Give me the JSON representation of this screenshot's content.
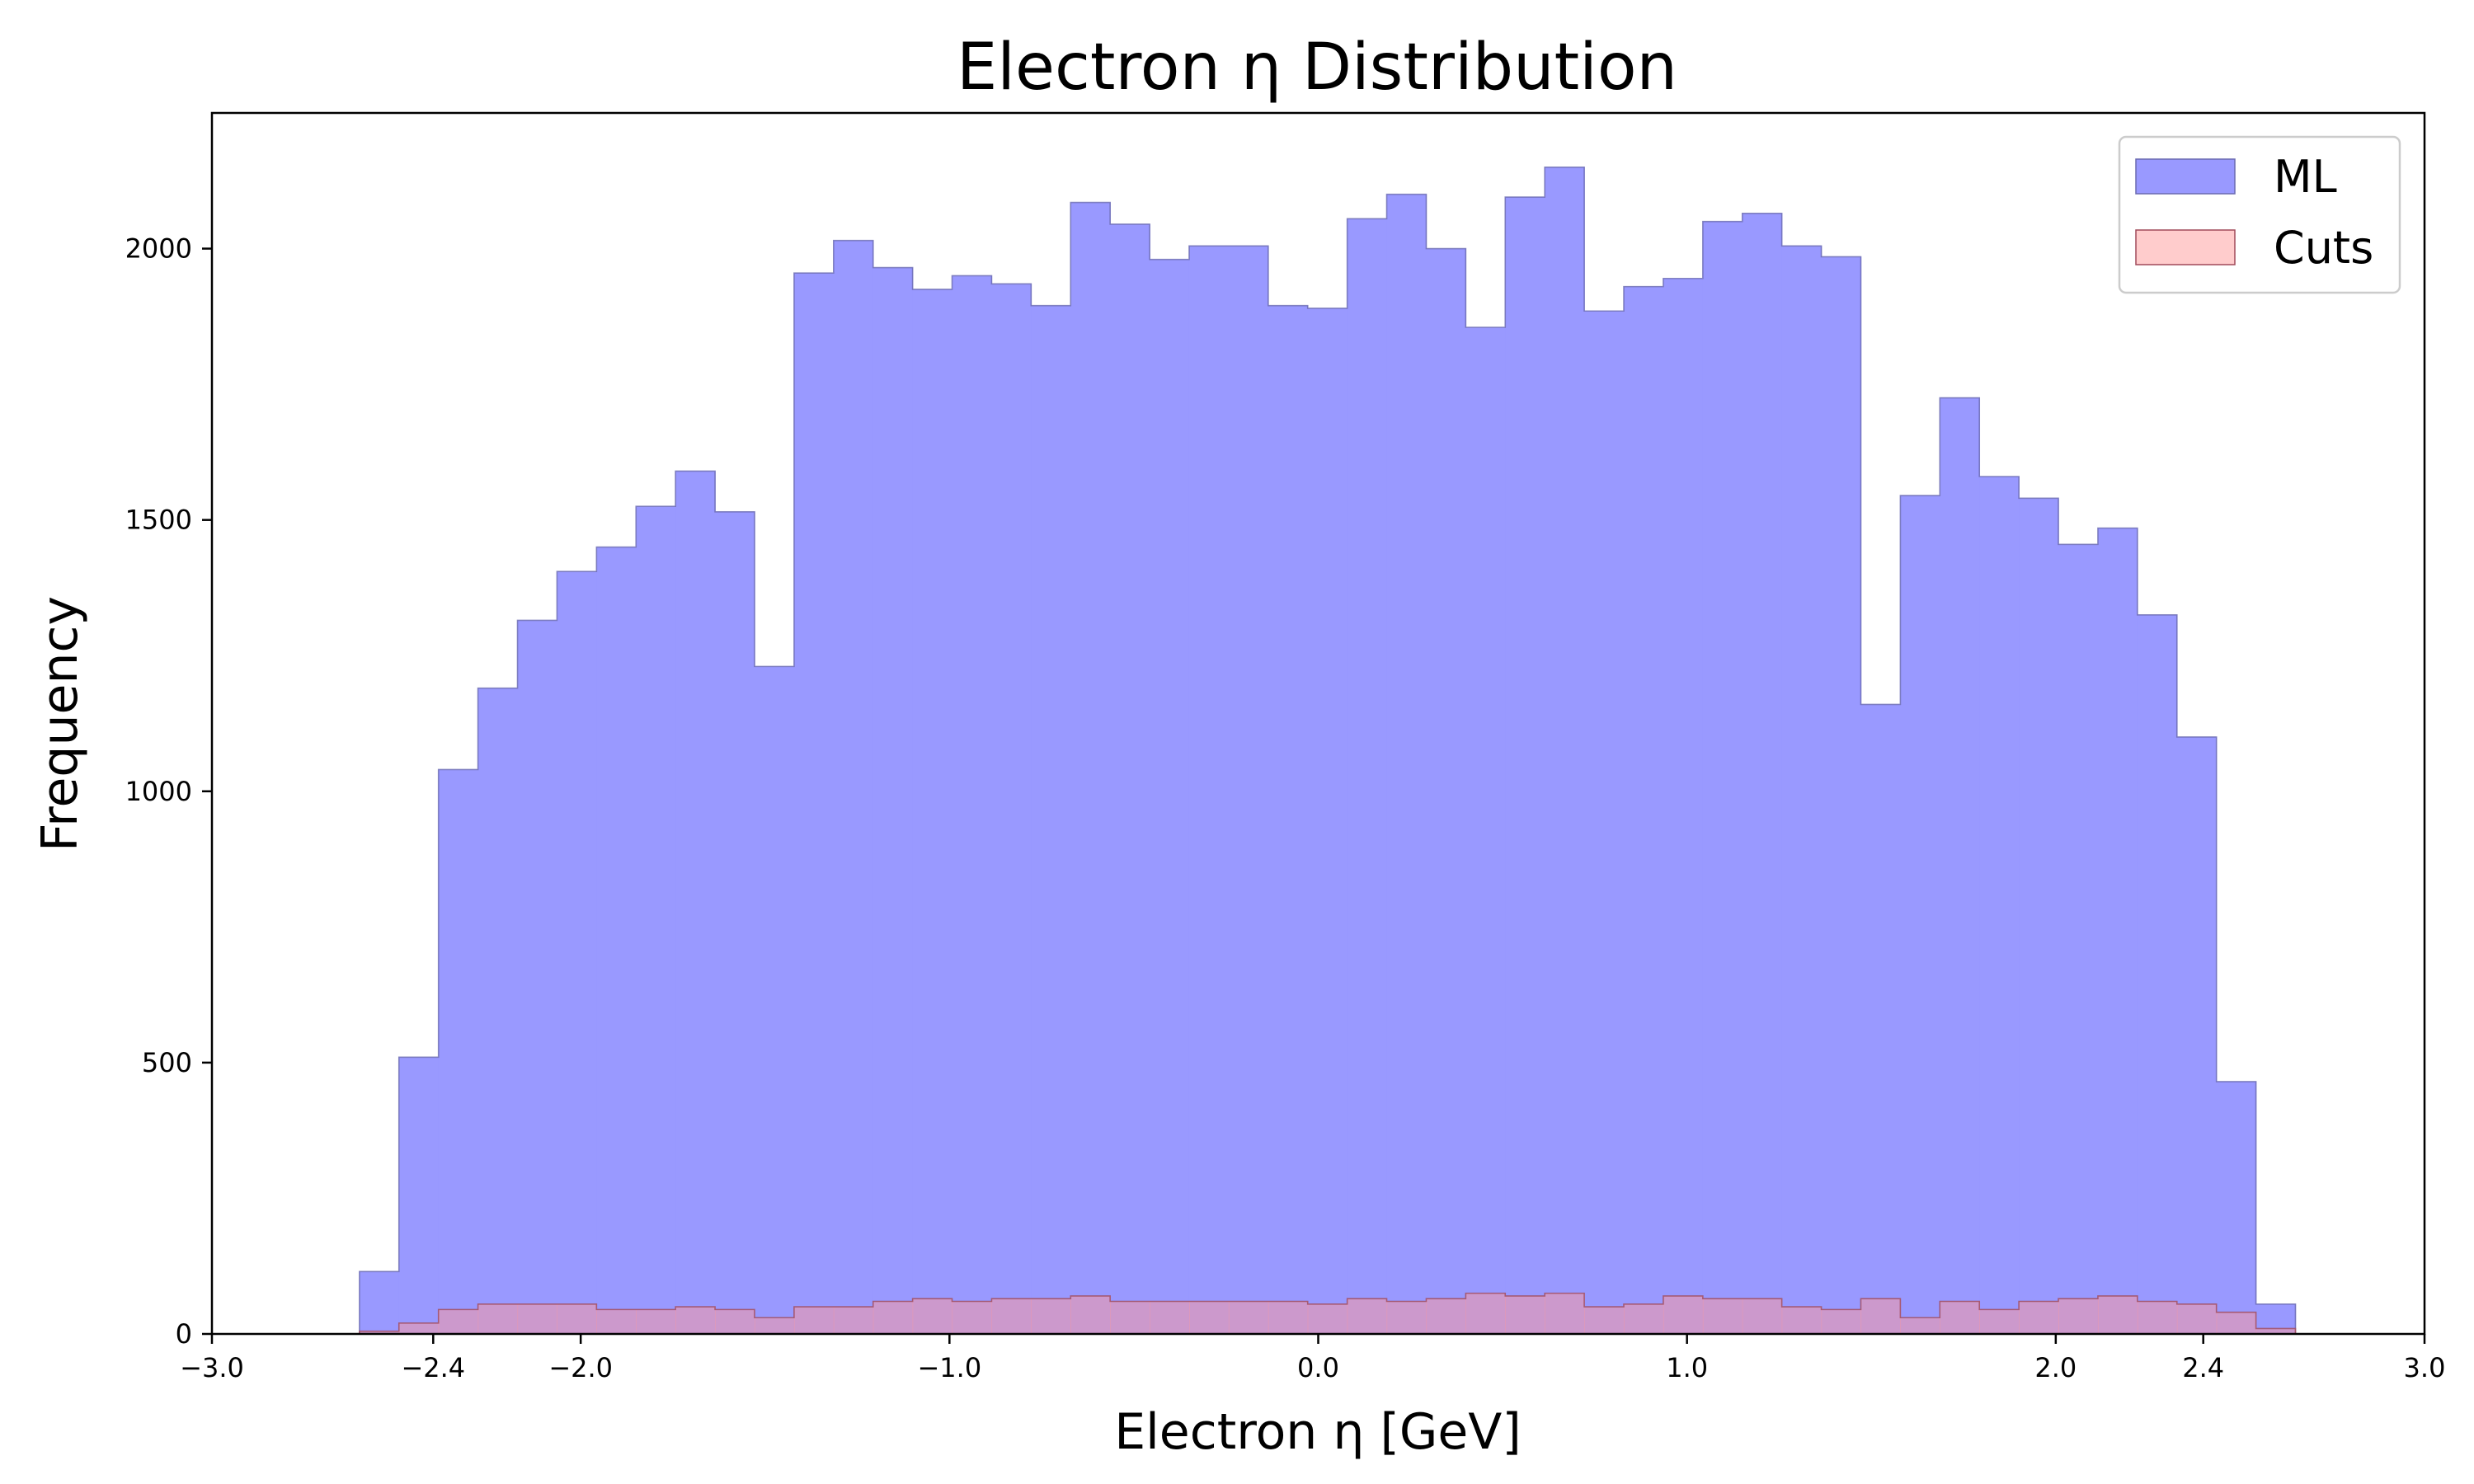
{
  "chart_data": {
    "type": "histogram",
    "title": "Electron η Distribution",
    "xlabel": "Electron η [GeV]",
    "ylabel": "Frequency",
    "xlim": [
      -3.0,
      3.0
    ],
    "ylim": [
      0,
      2250
    ],
    "x_ticks": [
      {
        "value": -3.0,
        "label": "−3.0"
      },
      {
        "value": -2.4,
        "label": "−2.4"
      },
      {
        "value": -2.0,
        "label": "−2.0"
      },
      {
        "value": -1.0,
        "label": "−1.0"
      },
      {
        "value": 0.0,
        "label": "0.0"
      },
      {
        "value": 1.0,
        "label": "1.0"
      },
      {
        "value": 2.0,
        "label": "2.0"
      },
      {
        "value": 2.4,
        "label": "2.4"
      },
      {
        "value": 3.0,
        "label": "3.0"
      }
    ],
    "y_ticks": [
      {
        "value": 0,
        "label": "0"
      },
      {
        "value": 500,
        "label": "500"
      },
      {
        "value": 1000,
        "label": "1000"
      },
      {
        "value": 1500,
        "label": "1500"
      },
      {
        "value": 2000,
        "label": "2000"
      }
    ],
    "grid": false,
    "legend_position": "top-right",
    "bin_edges": [
      -2.6,
      -2.4929,
      -2.3857,
      -2.2786,
      -2.1714,
      -2.0643,
      -1.9571,
      -1.85,
      -1.7429,
      -1.6357,
      -1.5286,
      -1.4214,
      -1.3143,
      -1.2071,
      -1.1,
      -0.9929,
      -0.8857,
      -0.7786,
      -0.6714,
      -0.5643,
      -0.4571,
      -0.35,
      -0.2429,
      -0.1357,
      -0.0286,
      0.0786,
      0.1857,
      0.2929,
      0.4,
      0.5071,
      0.6143,
      0.7214,
      0.8286,
      0.9357,
      1.0429,
      1.15,
      1.2571,
      1.3643,
      1.4714,
      1.5786,
      1.6857,
      1.7929,
      1.9,
      2.0071,
      2.1143,
      2.2214,
      2.3286,
      2.4357,
      2.5429,
      2.65
    ],
    "series": [
      {
        "name": "ML",
        "color": "#9999ff",
        "edge_color": "#6a6ab0",
        "values": [
          115,
          510,
          1040,
          1190,
          1315,
          1405,
          1450,
          1525,
          1590,
          1515,
          1230,
          1955,
          2015,
          1965,
          1925,
          1950,
          1935,
          1895,
          2085,
          2045,
          1980,
          2005,
          2005,
          1895,
          1890,
          2055,
          2100,
          2000,
          1855,
          2095,
          2150,
          1885,
          1930,
          1945,
          2050,
          2065,
          2005,
          1985,
          1160,
          1545,
          1725,
          1580,
          1540,
          1455,
          1485,
          1325,
          1100,
          465,
          55
        ]
      },
      {
        "name": "Cuts",
        "color": "#ff9999",
        "edge_color": "#a04a5a",
        "values": [
          5,
          20,
          45,
          55,
          55,
          55,
          45,
          45,
          50,
          45,
          30,
          50,
          50,
          60,
          65,
          60,
          65,
          65,
          70,
          60,
          60,
          60,
          60,
          60,
          55,
          65,
          60,
          65,
          75,
          70,
          75,
          50,
          55,
          70,
          65,
          65,
          50,
          45,
          65,
          30,
          60,
          45,
          60,
          65,
          70,
          60,
          55,
          40,
          10
        ]
      }
    ]
  }
}
